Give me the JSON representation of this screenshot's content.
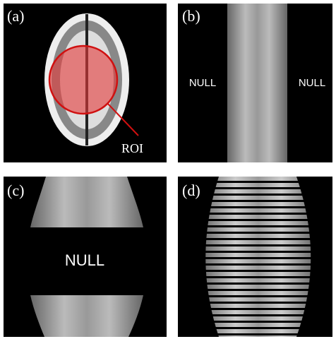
{
  "panels": [
    {
      "label": "(a)",
      "annotations": [
        "ROI"
      ]
    },
    {
      "label": "(b)",
      "annotations": [
        "NULL",
        "NULL"
      ]
    },
    {
      "label": "(c)",
      "annotations": [
        "NULL"
      ]
    },
    {
      "label": "(d)",
      "annotations": []
    }
  ]
}
